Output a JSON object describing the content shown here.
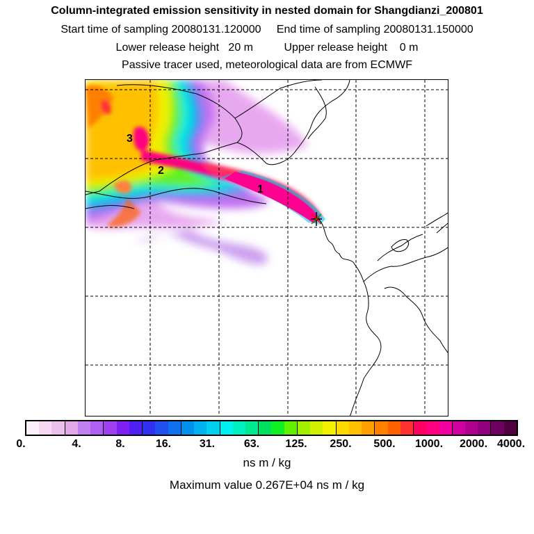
{
  "header": {
    "title": "Column-integrated emission sensitivity in nested domain for Shangdianzi_200801",
    "sampling_line": "Start time of sampling 20080131.120000     End time of sampling 20080131.150000",
    "release_line": "Lower release height   20 m          Upper release height    0 m",
    "info_line": "Passive tracer used, meteorological data are from ECMWF"
  },
  "map": {
    "labels": [
      "1",
      "2",
      "3"
    ]
  },
  "colorbar": {
    "tick_labels": [
      "0.",
      "4.",
      "8.",
      "16.",
      "31.",
      "63.",
      "125.",
      "250.",
      "500.",
      "1000.",
      "2000.",
      "4000."
    ],
    "colors": [
      "#fbf0fb",
      "#f4d8f4",
      "#ecc0ec",
      "#e4a8e8",
      "#c080f0",
      "#b060f0",
      "#a040f0",
      "#8020f0",
      "#5020f0",
      "#3030f0",
      "#2050f0",
      "#1070f0",
      "#0090f0",
      "#00b0f0",
      "#00d0f0",
      "#00f0f0",
      "#00f0c0",
      "#00e890",
      "#00e060",
      "#10f020",
      "#60f000",
      "#a0f000",
      "#d0f000",
      "#f0f000",
      "#ffd800",
      "#ffc000",
      "#ffa000",
      "#ff8000",
      "#ff6000",
      "#ff3030",
      "#ff0060",
      "#ff0080",
      "#f000a0",
      "#d000a0",
      "#b00090",
      "#900080",
      "#700060",
      "#500040"
    ],
    "unit": "ns m / kg",
    "max_line": "Maximum value  0.267E+04 ns m / kg"
  }
}
